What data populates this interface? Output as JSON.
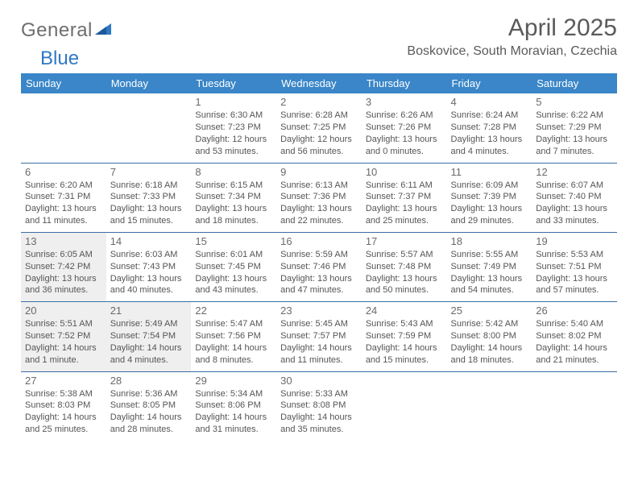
{
  "brand": {
    "part1": "General",
    "part2": "Blue"
  },
  "title": "April 2025",
  "location": "Boskovice, South Moravian, Czechia",
  "colors": {
    "header_bg": "#3a86c8",
    "header_text": "#ffffff",
    "cell_border": "#3a6fa5",
    "shaded_bg": "#efefef",
    "text": "#555555",
    "brand_gray": "#6e6e6e",
    "brand_blue": "#2f78c4"
  },
  "weekdays": [
    "Sunday",
    "Monday",
    "Tuesday",
    "Wednesday",
    "Thursday",
    "Friday",
    "Saturday"
  ],
  "weeks": [
    [
      {
        "blank": true
      },
      {
        "blank": true
      },
      {
        "day": "1",
        "sunrise": "Sunrise: 6:30 AM",
        "sunset": "Sunset: 7:23 PM",
        "daylight": "Daylight: 12 hours and 53 minutes."
      },
      {
        "day": "2",
        "sunrise": "Sunrise: 6:28 AM",
        "sunset": "Sunset: 7:25 PM",
        "daylight": "Daylight: 12 hours and 56 minutes."
      },
      {
        "day": "3",
        "sunrise": "Sunrise: 6:26 AM",
        "sunset": "Sunset: 7:26 PM",
        "daylight": "Daylight: 13 hours and 0 minutes."
      },
      {
        "day": "4",
        "sunrise": "Sunrise: 6:24 AM",
        "sunset": "Sunset: 7:28 PM",
        "daylight": "Daylight: 13 hours and 4 minutes."
      },
      {
        "day": "5",
        "sunrise": "Sunrise: 6:22 AM",
        "sunset": "Sunset: 7:29 PM",
        "daylight": "Daylight: 13 hours and 7 minutes."
      }
    ],
    [
      {
        "day": "6",
        "sunrise": "Sunrise: 6:20 AM",
        "sunset": "Sunset: 7:31 PM",
        "daylight": "Daylight: 13 hours and 11 minutes."
      },
      {
        "day": "7",
        "sunrise": "Sunrise: 6:18 AM",
        "sunset": "Sunset: 7:33 PM",
        "daylight": "Daylight: 13 hours and 15 minutes."
      },
      {
        "day": "8",
        "sunrise": "Sunrise: 6:15 AM",
        "sunset": "Sunset: 7:34 PM",
        "daylight": "Daylight: 13 hours and 18 minutes."
      },
      {
        "day": "9",
        "sunrise": "Sunrise: 6:13 AM",
        "sunset": "Sunset: 7:36 PM",
        "daylight": "Daylight: 13 hours and 22 minutes."
      },
      {
        "day": "10",
        "sunrise": "Sunrise: 6:11 AM",
        "sunset": "Sunset: 7:37 PM",
        "daylight": "Daylight: 13 hours and 25 minutes."
      },
      {
        "day": "11",
        "sunrise": "Sunrise: 6:09 AM",
        "sunset": "Sunset: 7:39 PM",
        "daylight": "Daylight: 13 hours and 29 minutes."
      },
      {
        "day": "12",
        "sunrise": "Sunrise: 6:07 AM",
        "sunset": "Sunset: 7:40 PM",
        "daylight": "Daylight: 13 hours and 33 minutes."
      }
    ],
    [
      {
        "day": "13",
        "shaded": true,
        "sunrise": "Sunrise: 6:05 AM",
        "sunset": "Sunset: 7:42 PM",
        "daylight": "Daylight: 13 hours and 36 minutes."
      },
      {
        "day": "14",
        "sunrise": "Sunrise: 6:03 AM",
        "sunset": "Sunset: 7:43 PM",
        "daylight": "Daylight: 13 hours and 40 minutes."
      },
      {
        "day": "15",
        "sunrise": "Sunrise: 6:01 AM",
        "sunset": "Sunset: 7:45 PM",
        "daylight": "Daylight: 13 hours and 43 minutes."
      },
      {
        "day": "16",
        "sunrise": "Sunrise: 5:59 AM",
        "sunset": "Sunset: 7:46 PM",
        "daylight": "Daylight: 13 hours and 47 minutes."
      },
      {
        "day": "17",
        "sunrise": "Sunrise: 5:57 AM",
        "sunset": "Sunset: 7:48 PM",
        "daylight": "Daylight: 13 hours and 50 minutes."
      },
      {
        "day": "18",
        "sunrise": "Sunrise: 5:55 AM",
        "sunset": "Sunset: 7:49 PM",
        "daylight": "Daylight: 13 hours and 54 minutes."
      },
      {
        "day": "19",
        "sunrise": "Sunrise: 5:53 AM",
        "sunset": "Sunset: 7:51 PM",
        "daylight": "Daylight: 13 hours and 57 minutes."
      }
    ],
    [
      {
        "day": "20",
        "shaded": true,
        "sunrise": "Sunrise: 5:51 AM",
        "sunset": "Sunset: 7:52 PM",
        "daylight": "Daylight: 14 hours and 1 minute."
      },
      {
        "day": "21",
        "shaded": true,
        "sunrise": "Sunrise: 5:49 AM",
        "sunset": "Sunset: 7:54 PM",
        "daylight": "Daylight: 14 hours and 4 minutes."
      },
      {
        "day": "22",
        "sunrise": "Sunrise: 5:47 AM",
        "sunset": "Sunset: 7:56 PM",
        "daylight": "Daylight: 14 hours and 8 minutes."
      },
      {
        "day": "23",
        "sunrise": "Sunrise: 5:45 AM",
        "sunset": "Sunset: 7:57 PM",
        "daylight": "Daylight: 14 hours and 11 minutes."
      },
      {
        "day": "24",
        "sunrise": "Sunrise: 5:43 AM",
        "sunset": "Sunset: 7:59 PM",
        "daylight": "Daylight: 14 hours and 15 minutes."
      },
      {
        "day": "25",
        "sunrise": "Sunrise: 5:42 AM",
        "sunset": "Sunset: 8:00 PM",
        "daylight": "Daylight: 14 hours and 18 minutes."
      },
      {
        "day": "26",
        "sunrise": "Sunrise: 5:40 AM",
        "sunset": "Sunset: 8:02 PM",
        "daylight": "Daylight: 14 hours and 21 minutes."
      }
    ],
    [
      {
        "day": "27",
        "sunrise": "Sunrise: 5:38 AM",
        "sunset": "Sunset: 8:03 PM",
        "daylight": "Daylight: 14 hours and 25 minutes."
      },
      {
        "day": "28",
        "sunrise": "Sunrise: 5:36 AM",
        "sunset": "Sunset: 8:05 PM",
        "daylight": "Daylight: 14 hours and 28 minutes."
      },
      {
        "day": "29",
        "sunrise": "Sunrise: 5:34 AM",
        "sunset": "Sunset: 8:06 PM",
        "daylight": "Daylight: 14 hours and 31 minutes."
      },
      {
        "day": "30",
        "sunrise": "Sunrise: 5:33 AM",
        "sunset": "Sunset: 8:08 PM",
        "daylight": "Daylight: 14 hours and 35 minutes."
      },
      {
        "blank": true
      },
      {
        "blank": true
      },
      {
        "blank": true
      }
    ]
  ]
}
